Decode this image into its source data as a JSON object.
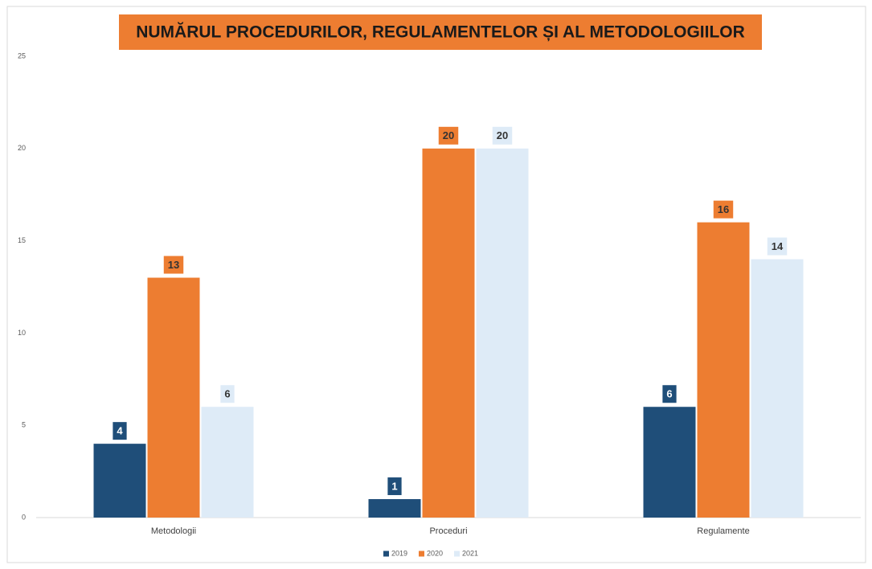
{
  "chart_data": {
    "type": "bar",
    "title": "NUMĂRUL PROCEDURILOR, REGULAMENTELOR ȘI AL METODOLOGIILOR",
    "categories": [
      "Metodologii",
      "Proceduri",
      "Regulamente"
    ],
    "series": [
      {
        "name": "2019",
        "color": "#1f4e79",
        "values": [
          4,
          1,
          6
        ]
      },
      {
        "name": "2020",
        "color": "#ed7d31",
        "values": [
          13,
          20,
          16
        ]
      },
      {
        "name": "2021",
        "color": "#deebf7",
        "values": [
          6,
          20,
          14
        ]
      }
    ],
    "ylim": [
      0,
      25
    ],
    "yticks": [
      0,
      5,
      10,
      15,
      20,
      25
    ],
    "grid": false,
    "legend": "bottom"
  }
}
